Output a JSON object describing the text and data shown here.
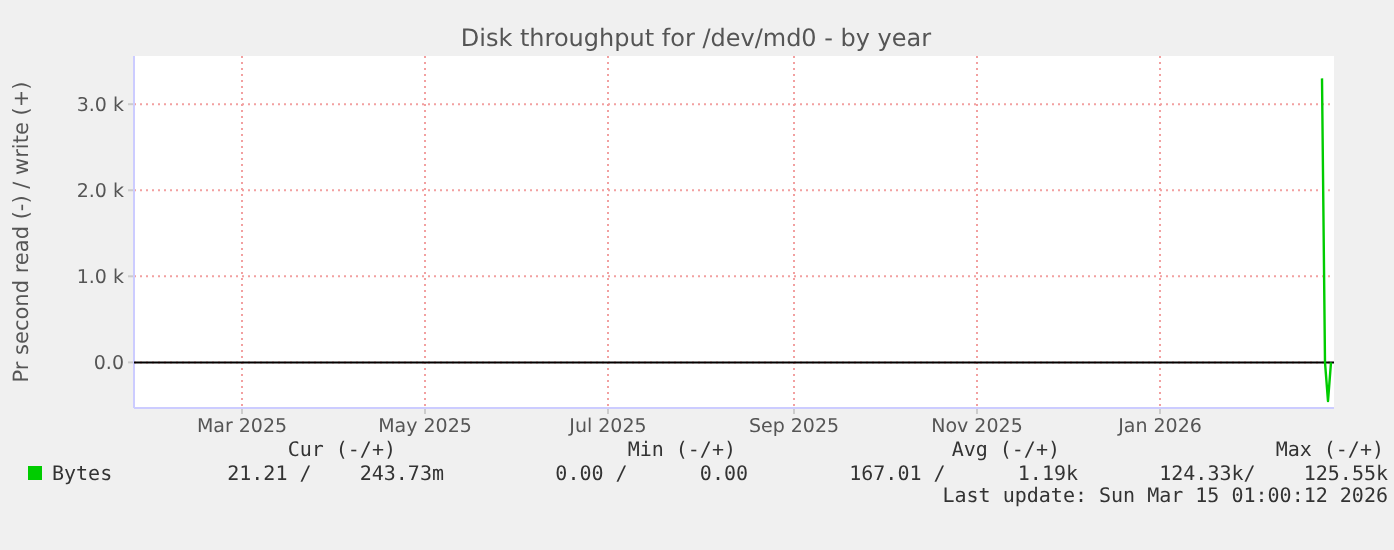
{
  "chart_data": {
    "type": "line",
    "title": "Disk throughput for /dev/md0 - by year",
    "ylabel": "Pr second read (-) / write (+)",
    "x": [
      "2026-03-11T00:00",
      "2026-03-12T00:00",
      "2026-03-13T00:00",
      "2026-03-14T00:00"
    ],
    "series": [
      {
        "name": "Bytes",
        "color": "#00cc00",
        "values": [
          3300,
          0,
          -450,
          0
        ]
      }
    ],
    "xlim": [
      "2025-02-08",
      "2026-03-15"
    ],
    "xticks": [
      {
        "value": "2025-03-16",
        "label": "Mar 2025"
      },
      {
        "value": "2025-05-16",
        "label": "May 2025"
      },
      {
        "value": "2025-07-16",
        "label": "Jul 2025"
      },
      {
        "value": "2025-09-16",
        "label": "Sep 2025"
      },
      {
        "value": "2025-11-16",
        "label": "Nov 2025"
      },
      {
        "value": "2026-01-16",
        "label": "Jan 2026"
      }
    ],
    "ylim": [
      -530,
      3560
    ],
    "yticks": [
      {
        "value": 0,
        "label": "0.0"
      },
      {
        "value": 1000,
        "label": "1.0 k"
      },
      {
        "value": 2000,
        "label": "2.0 k"
      },
      {
        "value": 3000,
        "label": "3.0 k"
      }
    ],
    "grid": true,
    "legend": "bottom left",
    "marker": "none",
    "line_style": "solid",
    "annotations": [
      "Cur (-/+)",
      "Min (-/+)",
      "Avg (-/+)",
      "Max (-/+)",
      "21.21 /    243.73m",
      "0.00 /      0.00",
      "167.01 /      1.19k",
      "124.33k/    125.55k",
      "Last update: Sun Mar 15 01:00:12 2026"
    ]
  }
}
